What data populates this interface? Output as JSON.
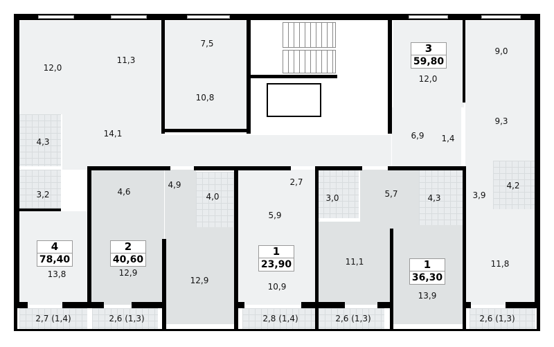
{
  "rooms": [
    {
      "label": "12,0"
    },
    {
      "label": "11,3"
    },
    {
      "label": "7,5"
    },
    {
      "label": "10,8"
    },
    {
      "label": "14,1"
    },
    {
      "label": "4,3"
    },
    {
      "label": "3,2"
    },
    {
      "label": "4,6"
    },
    {
      "label": "4,9"
    },
    {
      "label": "4,0"
    },
    {
      "label": "2,7"
    },
    {
      "label": "3,0"
    },
    {
      "label": "5,9"
    },
    {
      "label": "5,7"
    },
    {
      "label": "4,3"
    },
    {
      "label": "3,9"
    },
    {
      "label": "4,2"
    },
    {
      "label": "6,9"
    },
    {
      "label": "1,4"
    },
    {
      "label": "9,0"
    },
    {
      "label": "12,0"
    },
    {
      "label": "9,3"
    },
    {
      "label": "13,8"
    },
    {
      "label": "12,9"
    },
    {
      "label": "12,9"
    },
    {
      "label": "10,9"
    },
    {
      "label": "11,1"
    },
    {
      "label": "13,9"
    },
    {
      "label": "11,8"
    }
  ],
  "balconies": [
    {
      "label": "2,7 (1,4)"
    },
    {
      "label": "2,6 (1,3)"
    },
    {
      "label": "2,8 (1,4)"
    },
    {
      "label": "2,6 (1,3)"
    },
    {
      "label": "2,6 (1,3)"
    }
  ],
  "apartments": [
    {
      "rooms": "3",
      "area": "59,80"
    },
    {
      "rooms": "4",
      "area": "78,40"
    },
    {
      "rooms": "2",
      "area": "40,60"
    },
    {
      "rooms": "1",
      "area": "23,90"
    },
    {
      "rooms": "1",
      "area": "36,30"
    }
  ],
  "colors": {
    "wall": "#000000",
    "room": "#eff1f2",
    "room_alt": "#dfe2e3"
  }
}
